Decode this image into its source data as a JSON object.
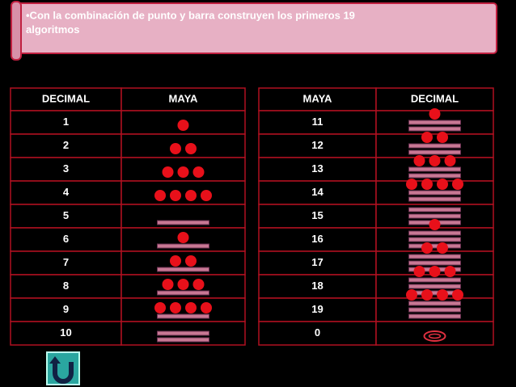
{
  "title": "•Con la combinación de punto y barra construyen los primeros 19 algoritmos",
  "left_table": {
    "header": [
      "DECIMAL",
      "MAYA"
    ],
    "rows": [
      "1",
      "2",
      "3",
      "4",
      "5",
      "6",
      "7",
      "8",
      "9",
      "10"
    ]
  },
  "right_table": {
    "header": [
      "MAYA",
      "DECIMAL"
    ],
    "rows": [
      "11",
      "12",
      "13",
      "14",
      "15",
      "16",
      "17",
      "18",
      "19",
      "0"
    ]
  }
}
